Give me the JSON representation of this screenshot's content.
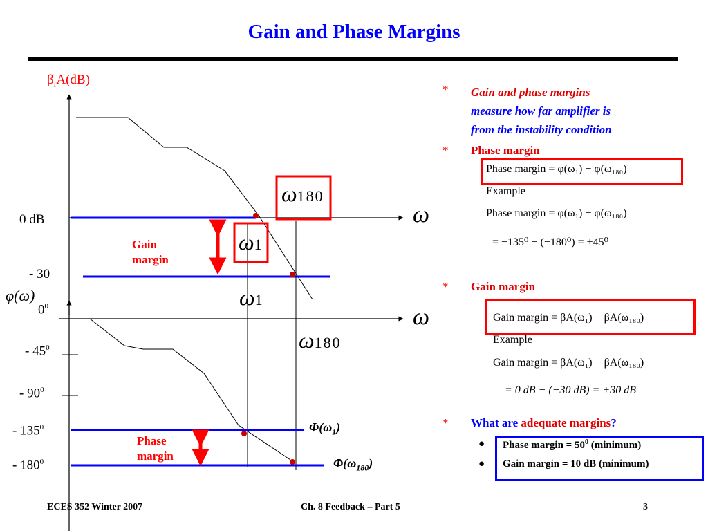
{
  "title": "Gain  and  Phase  Margins",
  "diagram": {
    "y_label_top": "β",
    "y_label_top_sub": "f",
    "y_label_top_rest": "A(dB)",
    "label_0db": "0 dB",
    "label_minus30": "- 30",
    "phi_label": "φ(ω)",
    "phase_ticks": [
      {
        "base": "0",
        "sup": "0"
      },
      {
        "base": "- 45",
        "sup": "0"
      },
      {
        "base": "- 90",
        "sup": "0"
      },
      {
        "base": "- 135",
        "sup": "0"
      },
      {
        "base": "- 180",
        "sup": "0"
      }
    ],
    "omega_axis": "ω",
    "omega180": "ω",
    "omega180_sub": "180",
    "omega1": "ω",
    "omega1_sub": "1",
    "gain_margin_label": [
      "Gain",
      "margin"
    ],
    "phase_margin_label": [
      "Phase",
      "margin"
    ],
    "phi_w1": "Φ(ω",
    "phi_w1_sub": "1",
    "phi_w180": "Φ(ω",
    "phi_w180_sub": "180",
    "close_paren": ")"
  },
  "right_panel": {
    "bullet1": [
      "Gain  and  phase  margins",
      "measure  how  far  amplifier  is",
      "from  the  instability  condition"
    ],
    "bullet2_heading": "Phase margin",
    "pm_formula": "Phase  margin = φ(ω₁) − φ(ω₁₈₀)",
    "example": "Example",
    "pm_calc": "= −135⁰ − (−180⁰) = +45⁰",
    "bullet3_heading": "Gain margin",
    "gm_formula": "Gain  margin = βA(ω₁) − βA(ω₁₈₀)",
    "gm_calc": "= 0  dB − (−30  dB) = +30  dB",
    "bullet4_prefix": "What are ",
    "bullet4_red": "adequate margins",
    "bullet4_suffix": "?",
    "sub_bullets": [
      {
        "text": "Phase margin = 50",
        "sup": "0",
        "rest": " (minimum)"
      },
      {
        "text": "Gain margin = 10 dB  (minimum)",
        "sup": "",
        "rest": ""
      }
    ],
    "star": "*"
  },
  "footer": {
    "left": "ECES 352  Winter 2007",
    "center": "Ch. 8 Feedback – Part 5",
    "page": "3"
  },
  "colors": {
    "title": "#0000ff",
    "accent_red": "#ff0000",
    "line_blue": "#0000ff"
  }
}
